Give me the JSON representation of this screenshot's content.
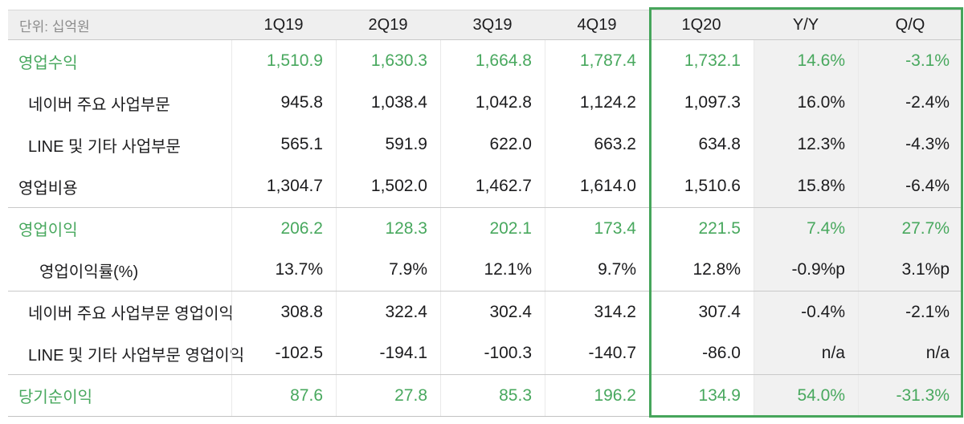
{
  "chart_data": {
    "type": "table",
    "unit_label": "단위: 십억원",
    "columns": [
      "1Q19",
      "2Q19",
      "3Q19",
      "4Q19",
      "1Q20",
      "Y/Y",
      "Q/Q"
    ],
    "highlighted_columns": [
      "1Q20",
      "Y/Y",
      "Q/Q"
    ],
    "colors": {
      "accent_green_text": "#48a85e",
      "highlight_border": "#46a55b",
      "header_bg": "#efefef",
      "shaded_column_bg": "#f1f1f1",
      "body_text": "#1c1c1e",
      "unit_text": "#8c8c8c"
    },
    "rows": [
      {
        "label": "영업수익",
        "style": "green",
        "indent": 0,
        "values": [
          "1,510.9",
          "1,630.3",
          "1,664.8",
          "1,787.4",
          "1,732.1",
          "14.6%",
          "-3.1%"
        ]
      },
      {
        "label": "네이버 주요 사업부문",
        "style": "normal",
        "indent": 1,
        "values": [
          "945.8",
          "1,038.4",
          "1,042.8",
          "1,124.2",
          "1,097.3",
          "16.0%",
          "-2.4%"
        ]
      },
      {
        "label": "LINE 및 기타 사업부문",
        "style": "normal",
        "indent": 1,
        "values": [
          "565.1",
          "591.9",
          "622.0",
          "663.2",
          "634.8",
          "12.3%",
          "-4.3%"
        ]
      },
      {
        "label": "영업비용",
        "style": "normal",
        "indent": 0,
        "values": [
          "1,304.7",
          "1,502.0",
          "1,462.7",
          "1,614.0",
          "1,510.6",
          "15.8%",
          "-6.4%"
        ]
      },
      {
        "label": "영업이익",
        "style": "green",
        "indent": 0,
        "separator_above": true,
        "values": [
          "206.2",
          "128.3",
          "202.1",
          "173.4",
          "221.5",
          "7.4%",
          "27.7%"
        ]
      },
      {
        "label": "영업이익률(%)",
        "style": "normal",
        "indent": 2,
        "values": [
          "13.7%",
          "7.9%",
          "12.1%",
          "9.7%",
          "12.8%",
          "-0.9%p",
          "3.1%p"
        ]
      },
      {
        "label": "네이버 주요 사업부문 영업이익",
        "style": "normal",
        "indent": 1,
        "separator_above": true,
        "values": [
          "308.8",
          "322.4",
          "302.4",
          "314.2",
          "307.4",
          "-0.4%",
          "-2.1%"
        ]
      },
      {
        "label": "LINE 및 기타 사업부문 영업이익",
        "style": "normal",
        "indent": 1,
        "values": [
          "-102.5",
          "-194.1",
          "-100.3",
          "-140.7",
          "-86.0",
          "n/a",
          "n/a"
        ]
      },
      {
        "label": "당기순이익",
        "style": "green",
        "indent": 0,
        "separator_above": true,
        "values": [
          "87.6",
          "27.8",
          "85.3",
          "196.2",
          "134.9",
          "54.0%",
          "-31.3%"
        ]
      }
    ]
  }
}
